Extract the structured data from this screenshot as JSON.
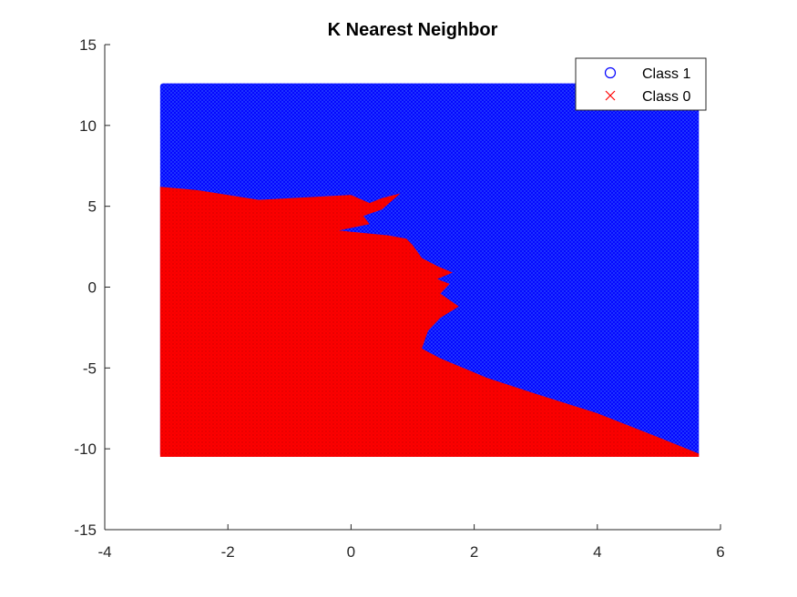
{
  "chart_data": {
    "type": "scatter",
    "title": "K Nearest Neighbor",
    "xlabel": "",
    "ylabel": "",
    "xlim": [
      -4,
      6
    ],
    "ylim": [
      -15,
      15
    ],
    "x_ticks": [
      "-4",
      "-2",
      "0",
      "2",
      "4",
      "6"
    ],
    "y_ticks": [
      "15",
      "10",
      "5",
      "0",
      "-5",
      "-10",
      "-15"
    ],
    "grid": false,
    "legend_position": "top-right",
    "grid_extent": {
      "x": [
        -3.1,
        5.65
      ],
      "y": [
        -10.5,
        12.6
      ]
    },
    "series": [
      {
        "name": "Class 1",
        "marker": "o",
        "color": "#0000ff"
      },
      {
        "name": "Class 0",
        "marker": "x",
        "color": "#ff0000"
      }
    ],
    "decision_boundary": {
      "description_x": "x of boundary between Class 0 (left/below) and Class 1 (right/above)",
      "points": [
        [
          -3.1,
          6.2
        ],
        [
          -2.5,
          6.0
        ],
        [
          -1.5,
          5.4
        ],
        [
          -0.5,
          5.6
        ],
        [
          0.0,
          5.7
        ],
        [
          0.3,
          5.2
        ],
        [
          0.5,
          5.5
        ],
        [
          0.8,
          5.8
        ],
        [
          0.5,
          4.8
        ],
        [
          0.2,
          4.4
        ],
        [
          0.3,
          3.9
        ],
        [
          -0.2,
          3.5
        ],
        [
          0.6,
          3.2
        ],
        [
          0.9,
          3.0
        ],
        [
          1.0,
          2.6
        ],
        [
          1.15,
          1.8
        ],
        [
          1.4,
          1.3
        ],
        [
          1.65,
          0.9
        ],
        [
          1.4,
          0.5
        ],
        [
          1.6,
          0.2
        ],
        [
          1.45,
          -0.4
        ],
        [
          1.75,
          -1.2
        ],
        [
          1.45,
          -1.9
        ],
        [
          1.25,
          -2.7
        ],
        [
          1.15,
          -3.8
        ],
        [
          1.45,
          -4.4
        ],
        [
          2.2,
          -5.6
        ],
        [
          3.0,
          -6.6
        ],
        [
          4.0,
          -7.8
        ],
        [
          5.0,
          -9.3
        ],
        [
          5.65,
          -10.3
        ]
      ]
    }
  }
}
